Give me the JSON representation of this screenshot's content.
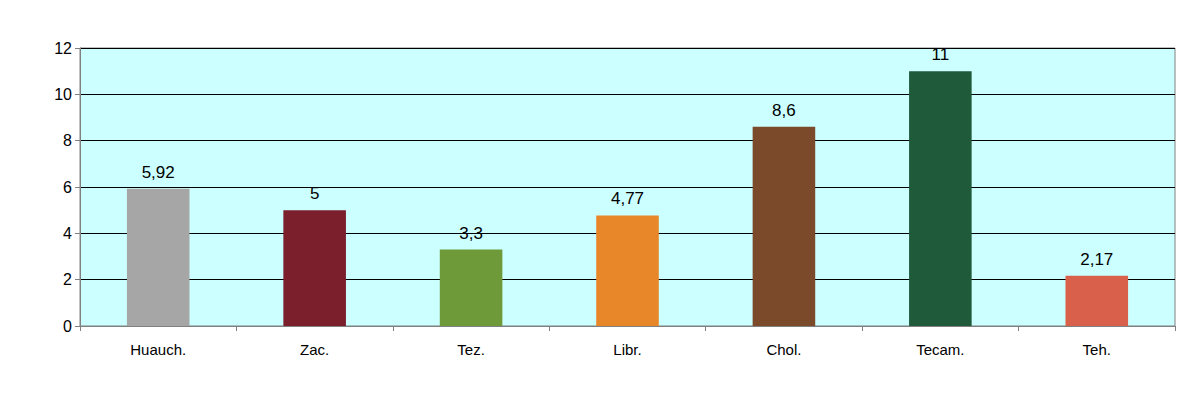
{
  "chart_data": {
    "type": "bar",
    "categories": [
      "Huauch.",
      "Zac.",
      "Tez.",
      "Libr.",
      "Chol.",
      "Tecam.",
      "Teh."
    ],
    "values": [
      5.92,
      5,
      3.3,
      4.77,
      8.6,
      11,
      2.17
    ],
    "value_labels": [
      "5,92",
      "5",
      "3,3",
      "4,77",
      "8,6",
      "11",
      "2,17"
    ],
    "colors": [
      "#a6a6a6",
      "#7a1f2b",
      "#6f9a3a",
      "#e8862a",
      "#7a4a2a",
      "#1f5a3a",
      "#d9604a"
    ],
    "ylim": [
      0,
      12
    ],
    "yticks": [
      0,
      2,
      4,
      6,
      8,
      10,
      12
    ],
    "grid": true,
    "data_labels": true
  }
}
